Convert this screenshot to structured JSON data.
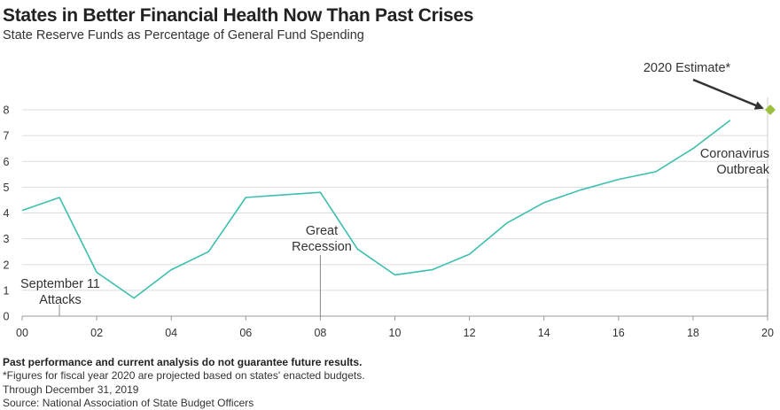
{
  "header": {
    "title": "States in Better Financial Health Now Than Past Crises",
    "subtitle": "State Reserve Funds as Percentage of General Fund Spending"
  },
  "chart_data": {
    "type": "line",
    "title": "States in Better Financial Health Now Than Past Crises",
    "subtitle": "State Reserve Funds as Percentage of General Fund Spending",
    "xlabel": "",
    "ylabel": "",
    "xlim": [
      0,
      20
    ],
    "ylim": [
      0,
      8
    ],
    "grid": true,
    "x_tick_labels": [
      "00",
      "02",
      "04",
      "06",
      "08",
      "10",
      "12",
      "14",
      "16",
      "18",
      "20"
    ],
    "y_tick_labels": [
      "0",
      "1",
      "2",
      "3",
      "4",
      "5",
      "6",
      "7",
      "8"
    ],
    "series": [
      {
        "name": "State Reserve Funds",
        "color": "#3dbfad",
        "x": [
          0,
          1,
          2,
          3,
          4,
          5,
          6,
          7,
          8,
          9,
          10,
          11,
          12,
          13,
          14,
          15,
          16,
          17,
          18,
          19
        ],
        "values": [
          4.1,
          4.6,
          1.7,
          0.7,
          1.8,
          2.5,
          4.6,
          4.7,
          4.8,
          2.6,
          1.6,
          1.8,
          2.4,
          3.6,
          4.4,
          4.9,
          5.3,
          5.6,
          6.5,
          7.6
        ]
      }
    ],
    "estimate": {
      "x": 20,
      "value": 8.0,
      "label": "2020 Estimate*",
      "color": "#9dc13f"
    },
    "annotations": [
      {
        "x": 1,
        "lines": [
          "September 11",
          "Attacks"
        ]
      },
      {
        "x": 8,
        "lines": [
          "Great",
          "Recession"
        ]
      },
      {
        "x": 20,
        "lines": [
          "Coronavirus",
          "Outbreak"
        ]
      }
    ]
  },
  "footer": {
    "disclaimer": "Past performance and current analysis do not guarantee future results.",
    "note": "*Figures for fiscal year 2020 are projected based on states' enacted budgets.",
    "date": "Through December 31, 2019",
    "source": "Source: National Association of State Budget Officers"
  }
}
